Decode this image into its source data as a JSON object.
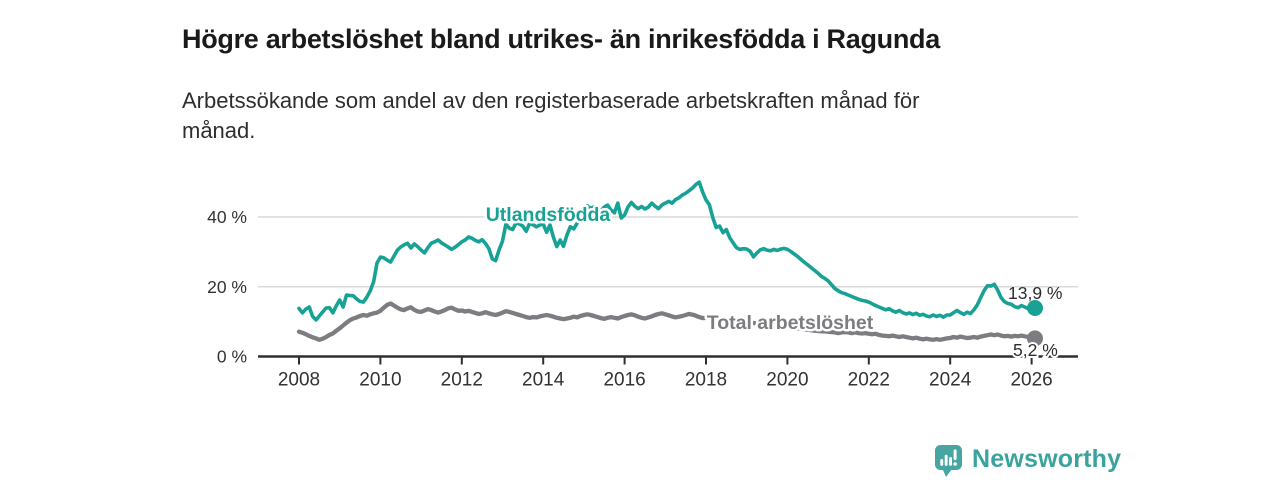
{
  "header": {
    "title": "Högre arbetslöshet bland utrikes- än inrikesfödda i Ragunda",
    "subtitle_lines": [
      "Arbetssökande som andel av den registerbaserade arbetskraften månad för",
      "månad."
    ]
  },
  "brand": {
    "name": "Newsworthy",
    "color": "#45a5a0"
  },
  "colors": {
    "accent_teal": "#17a295",
    "line_gray": "#7d7d81",
    "axis": "#2f2f2f",
    "grid": "#d9d9d9",
    "text": "#333333"
  },
  "chart_data": {
    "type": "line",
    "title": "Högre arbetslöshet bland utrikes- än inrikesfödda i Ragunda",
    "xlabel": "",
    "ylabel": "",
    "x_unit": "year (monthly values)",
    "x_start": 2008.0,
    "x_step": 0.083333,
    "xlim": [
      2006.9,
      2027.15
    ],
    "ylim": [
      0,
      52
    ],
    "grid": "horizontal",
    "legend_position": "inline-labels",
    "x_ticks": [
      2008,
      2010,
      2012,
      2014,
      2016,
      2018,
      2020,
      2022,
      2024,
      2026
    ],
    "y_ticks": [
      {
        "value": 0,
        "label": "0 %"
      },
      {
        "value": 20,
        "label": "20 %"
      },
      {
        "value": 40,
        "label": "40 %"
      }
    ],
    "series": [
      {
        "name": "Total arbetslöshet",
        "color": "#7d7d81",
        "end_label": "5,2 %",
        "end_value": 5.2,
        "values": [
          7.1,
          6.8,
          6.4,
          5.9,
          5.5,
          5.2,
          4.8,
          5.1,
          5.6,
          6.2,
          6.6,
          7.4,
          8.1,
          8.9,
          9.7,
          10.4,
          10.9,
          11.2,
          11.6,
          11.9,
          11.7,
          12.1,
          12.4,
          12.6,
          13.1,
          14.0,
          14.8,
          15.2,
          14.6,
          14.0,
          13.5,
          13.3,
          13.8,
          14.1,
          13.4,
          12.9,
          12.8,
          13.2,
          13.6,
          13.3,
          12.9,
          12.6,
          12.9,
          13.3,
          13.8,
          14.0,
          13.5,
          13.1,
          13.2,
          12.9,
          13.1,
          12.8,
          12.5,
          12.2,
          12.4,
          12.7,
          12.4,
          12.1,
          11.9,
          12.2,
          12.6,
          13.0,
          12.8,
          12.5,
          12.2,
          11.9,
          11.6,
          11.3,
          11.1,
          11.3,
          11.2,
          11.5,
          11.7,
          11.9,
          11.7,
          11.4,
          11.1,
          10.9,
          10.7,
          10.9,
          11.1,
          11.4,
          11.2,
          11.6,
          11.9,
          12.1,
          11.9,
          11.6,
          11.3,
          11.0,
          10.8,
          11.1,
          11.3,
          11.1,
          10.9,
          11.3,
          11.6,
          11.9,
          12.1,
          11.8,
          11.4,
          11.1,
          10.9,
          11.2,
          11.5,
          11.9,
          12.2,
          12.4,
          12.1,
          11.8,
          11.5,
          11.2,
          11.4,
          11.6,
          11.9,
          12.2,
          12.0,
          11.7,
          11.3,
          11.0,
          11.1,
          11.2,
          11.3,
          11.2,
          11.0,
          10.8,
          10.6,
          10.4,
          10.3,
          10.2,
          10.1,
          10.0,
          9.9,
          9.8,
          9.6,
          9.5,
          9.3,
          9.1,
          9.0,
          8.9,
          8.8,
          8.7,
          8.6,
          8.6,
          8.5,
          8.4,
          8.3,
          8.1,
          8.0,
          7.8,
          7.7,
          7.5,
          7.4,
          7.3,
          7.2,
          7.2,
          7.1,
          7.0,
          6.9,
          6.7,
          6.9,
          7.0,
          6.9,
          6.7,
          6.9,
          6.7,
          6.6,
          6.7,
          6.5,
          6.4,
          6.5,
          6.2,
          6.0,
          5.9,
          5.8,
          6.0,
          5.8,
          5.6,
          5.8,
          5.6,
          5.4,
          5.2,
          5.4,
          5.1,
          4.9,
          5.1,
          4.9,
          4.8,
          5.0,
          4.8,
          5.0,
          5.2,
          5.3,
          5.6,
          5.4,
          5.7,
          5.5,
          5.3,
          5.4,
          5.6,
          5.4,
          5.7,
          5.9,
          6.1,
          6.3,
          6.1,
          6.3,
          6.0,
          5.8,
          5.9,
          5.7,
          5.9,
          5.8,
          6.0,
          5.8,
          5.6,
          5.4,
          5.2
        ]
      },
      {
        "name": "Utlandsfödda",
        "color": "#17a295",
        "end_label": "13,9 %",
        "end_value": 13.9,
        "values": [
          13.8,
          12.5,
          13.6,
          14.2,
          11.5,
          10.5,
          11.6,
          12.8,
          13.9,
          14.0,
          12.5,
          14.5,
          16.2,
          14.2,
          17.6,
          17.5,
          17.4,
          16.5,
          15.8,
          15.6,
          17.0,
          18.8,
          21.4,
          26.8,
          28.5,
          28.3,
          27.6,
          27.1,
          28.8,
          30.5,
          31.4,
          32.0,
          32.5,
          31.1,
          32.3,
          31.5,
          30.5,
          29.7,
          31.2,
          32.5,
          32.9,
          33.4,
          32.6,
          32.0,
          31.4,
          30.7,
          31.3,
          32.1,
          32.9,
          33.4,
          34.3,
          33.9,
          33.3,
          32.9,
          33.5,
          32.4,
          30.9,
          28.0,
          27.5,
          30.6,
          33.1,
          38.0,
          36.8,
          36.4,
          38.4,
          38.0,
          37.4,
          35.9,
          38.2,
          37.8,
          37.2,
          37.7,
          38.0,
          35.6,
          37.7,
          34.2,
          31.5,
          33.4,
          31.6,
          34.8,
          37.2,
          36.6,
          38.2,
          39.5,
          41.2,
          43.2,
          42.4,
          43.0,
          42.2,
          41.8,
          42.8,
          43.4,
          42.0,
          41.2,
          44.0,
          39.7,
          40.6,
          42.9,
          44.2,
          43.1,
          42.4,
          43.0,
          42.3,
          42.8,
          44.0,
          43.1,
          42.4,
          43.4,
          44.0,
          44.5,
          44.0,
          45.0,
          45.5,
          46.3,
          46.8,
          47.5,
          48.3,
          49.3,
          50.0,
          47.2,
          44.9,
          43.5,
          39.8,
          37.0,
          37.4,
          35.5,
          36.4,
          34.1,
          32.6,
          31.2,
          30.7,
          30.9,
          30.8,
          30.2,
          28.6,
          29.7,
          30.6,
          30.9,
          30.5,
          30.3,
          30.7,
          30.4,
          30.8,
          31.0,
          30.7,
          30.1,
          29.4,
          28.7,
          27.8,
          27.0,
          26.3,
          25.5,
          24.7,
          23.9,
          23.0,
          22.4,
          21.7,
          20.6,
          19.5,
          18.8,
          18.3,
          18.0,
          17.6,
          17.2,
          16.8,
          16.4,
          16.1,
          15.9,
          15.6,
          15.1,
          14.6,
          14.2,
          13.8,
          13.4,
          13.7,
          13.1,
          12.7,
          13.2,
          12.6,
          12.2,
          12.5,
          12.0,
          12.4,
          11.8,
          12.1,
          11.6,
          11.4,
          11.9,
          11.5,
          11.8,
          11.3,
          11.9,
          11.9,
          12.6,
          13.2,
          12.6,
          12.1,
          12.7,
          12.3,
          13.4,
          14.8,
          16.9,
          18.9,
          20.3,
          20.2,
          20.7,
          19.0,
          16.9,
          15.7,
          15.2,
          15.0,
          14.3,
          14.0,
          14.6,
          14.2,
          13.7,
          14.1,
          13.9
        ]
      }
    ]
  }
}
